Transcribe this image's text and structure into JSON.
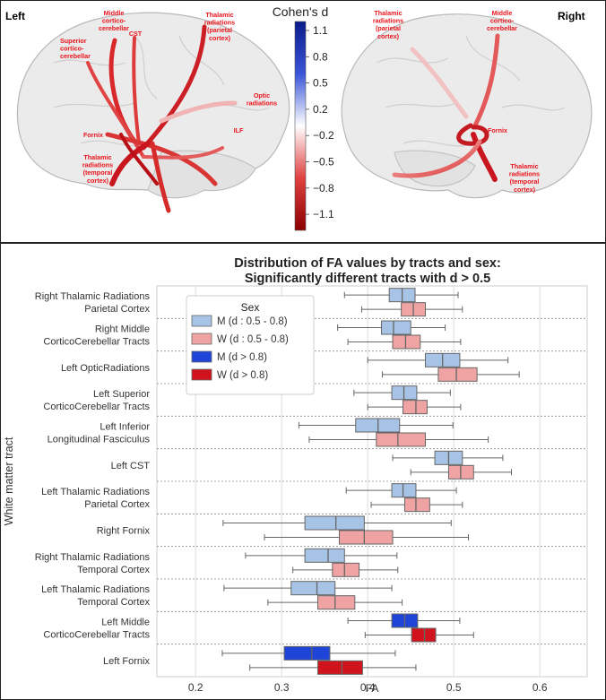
{
  "brain": {
    "left_label": "Left",
    "right_label": "Right",
    "colorbar_title": "Cohen's d",
    "colorbar_ticks": [
      "1.1",
      "0.8",
      "0.5",
      "0.2",
      "−0.2",
      "−0.5",
      "−0.8",
      "−1.1"
    ],
    "colors": {
      "positive": "#0a1a8c",
      "negative": "#b00000",
      "neutral": "#ffffff"
    },
    "left_annotations": [
      {
        "key": "mcc",
        "text": [
          "Middle",
          "cortico-",
          "cerebellar"
        ]
      },
      {
        "key": "cst",
        "text": [
          "CST"
        ]
      },
      {
        "key": "thp",
        "text": [
          "Thalamic",
          "radiations",
          "(parietal",
          "cortex)"
        ]
      },
      {
        "key": "scc",
        "text": [
          "Superior",
          "cortico-",
          "cerebellar"
        ]
      },
      {
        "key": "optic",
        "text": [
          "Optic",
          "radiations"
        ]
      },
      {
        "key": "ilf",
        "text": [
          "ILF"
        ]
      },
      {
        "key": "fornix",
        "text": [
          "Fornix"
        ]
      },
      {
        "key": "tht",
        "text": [
          "Thalamic",
          "radiations",
          "(temporal",
          "cortex)"
        ]
      }
    ],
    "right_annotations": [
      {
        "key": "thp",
        "text": [
          "Thalamic",
          "radiations",
          "(parietal",
          "cortex)"
        ]
      },
      {
        "key": "mcc",
        "text": [
          "Middle",
          "cortico-",
          "cerebellar"
        ]
      },
      {
        "key": "fornix",
        "text": [
          "Fornix"
        ]
      },
      {
        "key": "tht",
        "text": [
          "Thalamic",
          "radiations",
          "(temporal",
          "cortex)"
        ]
      }
    ]
  },
  "chart_data": {
    "type": "boxplot",
    "title": [
      "Distribution of FA values by tracts and sex:",
      "Significantly different tracts with d > 0.5"
    ],
    "xlabel": "FA",
    "ylabel": "White matter tract",
    "xlim": [
      0.155,
      0.655
    ],
    "xticks": [
      0.2,
      0.3,
      0.4,
      0.5,
      0.6
    ],
    "grid": true,
    "legend": {
      "title": "Sex",
      "placement": "top-left",
      "entries": [
        {
          "label": "M (d : 0.5 - 0.8)",
          "color": "#a7c4e6"
        },
        {
          "label": "W (d : 0.5 - 0.8)",
          "color": "#f0a3a3"
        },
        {
          "label": "M (d > 0.8)",
          "color": "#1f44d8"
        },
        {
          "label": "W (d > 0.8)",
          "color": "#d1131e"
        }
      ]
    },
    "categories": [
      [
        "Right Thalamic Radiations",
        "Parietal Cortex"
      ],
      [
        "Right Middle",
        "CorticoCerebellar Tracts"
      ],
      [
        "Left OpticRadiations"
      ],
      [
        "Left Superior",
        "CorticoCerebellar Tracts"
      ],
      [
        "Left Inferior",
        "Longitudinal Fasciculus"
      ],
      [
        "Left CST"
      ],
      [
        "Left Thalamic Radiations",
        "Parietal Cortex"
      ],
      [
        "Right Fornix"
      ],
      [
        "Right Thalamic Radiations",
        "Temporal Cortex"
      ],
      [
        "Left Thalamic Radiations",
        "Temporal Cortex"
      ],
      [
        "Left Middle",
        "CorticoCerebellar Tracts"
      ],
      [
        "Left Fornix"
      ]
    ],
    "series": [
      {
        "name": "M",
        "boxes": [
          {
            "whislo": 0.373,
            "q1": 0.425,
            "med": 0.44,
            "q3": 0.455,
            "whishi": 0.505,
            "color": "#a7c4e6"
          },
          {
            "whislo": 0.365,
            "q1": 0.416,
            "med": 0.43,
            "q3": 0.45,
            "whishi": 0.49,
            "color": "#a7c4e6"
          },
          {
            "whislo": 0.4,
            "q1": 0.467,
            "med": 0.487,
            "q3": 0.507,
            "whishi": 0.563,
            "color": "#a7c4e6"
          },
          {
            "whislo": 0.384,
            "q1": 0.428,
            "med": 0.442,
            "q3": 0.457,
            "whishi": 0.496,
            "color": "#a7c4e6"
          },
          {
            "whislo": 0.32,
            "q1": 0.386,
            "med": 0.412,
            "q3": 0.437,
            "whishi": 0.499,
            "color": "#a7c4e6"
          },
          {
            "whislo": 0.429,
            "q1": 0.478,
            "med": 0.494,
            "q3": 0.51,
            "whishi": 0.557,
            "color": "#a7c4e6"
          },
          {
            "whislo": 0.375,
            "q1": 0.428,
            "med": 0.441,
            "q3": 0.456,
            "whishi": 0.503,
            "color": "#a7c4e6"
          },
          {
            "whislo": 0.232,
            "q1": 0.327,
            "med": 0.363,
            "q3": 0.396,
            "whishi": 0.497,
            "color": "#a7c4e6"
          },
          {
            "whislo": 0.258,
            "q1": 0.327,
            "med": 0.354,
            "q3": 0.373,
            "whishi": 0.434,
            "color": "#a7c4e6"
          },
          {
            "whislo": 0.233,
            "q1": 0.311,
            "med": 0.341,
            "q3": 0.362,
            "whishi": 0.428,
            "color": "#a7c4e6"
          },
          {
            "whislo": 0.377,
            "q1": 0.428,
            "med": 0.443,
            "q3": 0.458,
            "whishi": 0.507,
            "color": "#1f44d8"
          },
          {
            "whislo": 0.231,
            "q1": 0.303,
            "med": 0.335,
            "q3": 0.356,
            "whishi": 0.432,
            "color": "#1f44d8"
          }
        ]
      },
      {
        "name": "W",
        "boxes": [
          {
            "whislo": 0.393,
            "q1": 0.439,
            "med": 0.453,
            "q3": 0.467,
            "whishi": 0.51,
            "color": "#f0a3a3"
          },
          {
            "whislo": 0.377,
            "q1": 0.429,
            "med": 0.444,
            "q3": 0.461,
            "whishi": 0.508,
            "color": "#f0a3a3"
          },
          {
            "whislo": 0.417,
            "q1": 0.482,
            "med": 0.503,
            "q3": 0.527,
            "whishi": 0.576,
            "color": "#f0a3a3"
          },
          {
            "whislo": 0.4,
            "q1": 0.441,
            "med": 0.456,
            "q3": 0.469,
            "whishi": 0.508,
            "color": "#f0a3a3"
          },
          {
            "whislo": 0.332,
            "q1": 0.41,
            "med": 0.435,
            "q3": 0.467,
            "whishi": 0.54,
            "color": "#f0a3a3"
          },
          {
            "whislo": 0.45,
            "q1": 0.494,
            "med": 0.508,
            "q3": 0.523,
            "whishi": 0.567,
            "color": "#f0a3a3"
          },
          {
            "whislo": 0.404,
            "q1": 0.443,
            "med": 0.456,
            "q3": 0.472,
            "whishi": 0.51,
            "color": "#f0a3a3"
          },
          {
            "whislo": 0.28,
            "q1": 0.367,
            "med": 0.396,
            "q3": 0.429,
            "whishi": 0.517,
            "color": "#f0a3a3"
          },
          {
            "whislo": 0.313,
            "q1": 0.359,
            "med": 0.373,
            "q3": 0.39,
            "whishi": 0.435,
            "color": "#f0a3a3"
          },
          {
            "whislo": 0.284,
            "q1": 0.342,
            "med": 0.362,
            "q3": 0.385,
            "whishi": 0.44,
            "color": "#f0a3a3"
          },
          {
            "whislo": 0.397,
            "q1": 0.451,
            "med": 0.466,
            "q3": 0.479,
            "whishi": 0.523,
            "color": "#d1131e"
          },
          {
            "whislo": 0.263,
            "q1": 0.342,
            "med": 0.37,
            "q3": 0.394,
            "whishi": 0.456,
            "color": "#d1131e"
          }
        ]
      }
    ]
  }
}
